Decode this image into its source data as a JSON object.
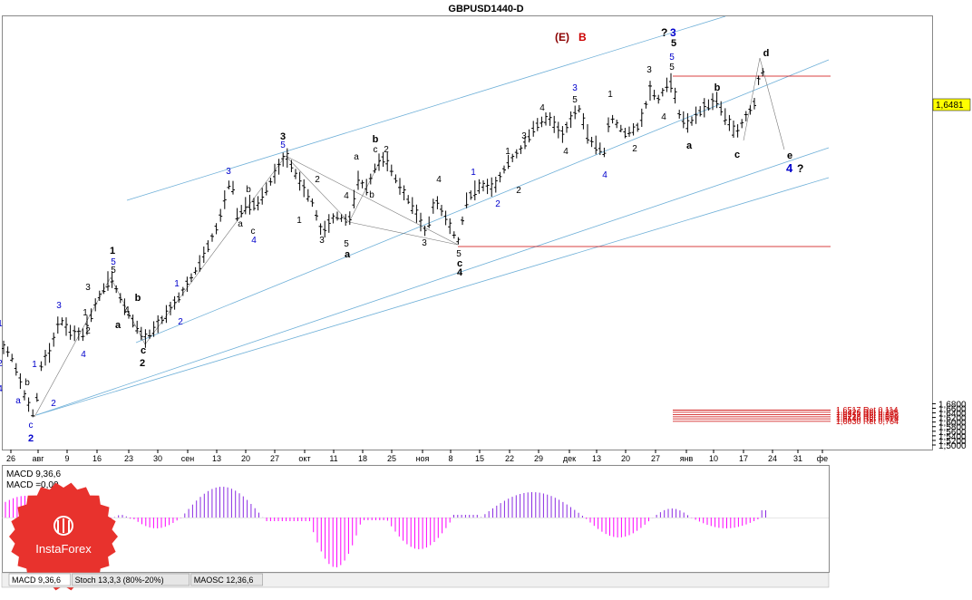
{
  "title": "GBPUSD1440-D",
  "price_label": "1,6481",
  "y_ticks": [
    "1,6800",
    "1,6600",
    "1,6400",
    "1,6200",
    "1,6000",
    "1,5800",
    "1,5600",
    "1,5400",
    "1,5200",
    "1,5000"
  ],
  "date_ticks": [
    "26",
    "авг",
    "9",
    "16",
    "23",
    "30",
    "сен",
    "13",
    "20",
    "27",
    "окт",
    "11",
    "18",
    "25",
    "ноя",
    "8",
    "15",
    "22",
    "29",
    "дек",
    "13",
    "20",
    "27",
    "янв",
    "10",
    "17",
    "24",
    "31",
    "фе"
  ],
  "fib_levels": [
    {
      "label": "1,6517 Ret 0,114",
      "price": 1.6517
    },
    {
      "label": "1,6426 Ret 0,236",
      "price": 1.6426
    },
    {
      "label": "1,6317 Ret 0,382",
      "price": 1.6317
    },
    {
      "label": "1,6228 Ret 0,500",
      "price": 1.6228
    },
    {
      "label": "1,6140 Ret 0,618",
      "price": 1.614
    },
    {
      "label": "1,6030 Ret 0,764",
      "price": 1.603
    }
  ],
  "annotations": {
    "e_label": "(E)",
    "b_label": "B",
    "top_q": "?",
    "top_3": "3",
    "right_4": "4",
    "right_q": "?",
    "e_small": "e"
  },
  "indicator": {
    "macd_line1": "MACD 9,36,6",
    "macd_line2": "MACD =0,00"
  },
  "tabs": [
    "MACD 9,36,6",
    "Stoch 13,3,3 (80%-20%)",
    "MAOSC 12,36,6"
  ],
  "logo_text": "InstaForex",
  "colors": {
    "up": "#000000",
    "macd_pos": "#ff00ff",
    "fib": "#cc0000",
    "channel": "#6fb0d8",
    "wave_blue": "#0000cc"
  },
  "chart_data": {
    "type": "line",
    "title": "GBPUSD1440-D",
    "ylim": [
      1.496,
      1.69
    ],
    "x": [
      "Jul 26",
      "Aug 2",
      "Aug 9",
      "Aug 16",
      "Aug 23",
      "Aug 30",
      "Sep 6",
      "Sep 13",
      "Sep 20",
      "Sep 27",
      "Oct 4",
      "Oct 11",
      "Oct 18",
      "Oct 25",
      "Nov 1",
      "Nov 8",
      "Nov 15",
      "Nov 22",
      "Nov 29",
      "Dec 6",
      "Dec 13",
      "Dec 20",
      "Dec 27",
      "Jan 3",
      "Jan 10",
      "Jan 17",
      "Jan 24"
    ],
    "series": [
      {
        "values": [
          1.538,
          1.515,
          1.546,
          1.566,
          1.549,
          1.556,
          1.584,
          1.599,
          1.622,
          1.606,
          1.592,
          1.602,
          1.62,
          1.608,
          1.592,
          1.587,
          1.605,
          1.621,
          1.64,
          1.633,
          1.634,
          1.648,
          1.657,
          1.644,
          1.647,
          1.64,
          1.6481
        ]
      }
    ]
  }
}
